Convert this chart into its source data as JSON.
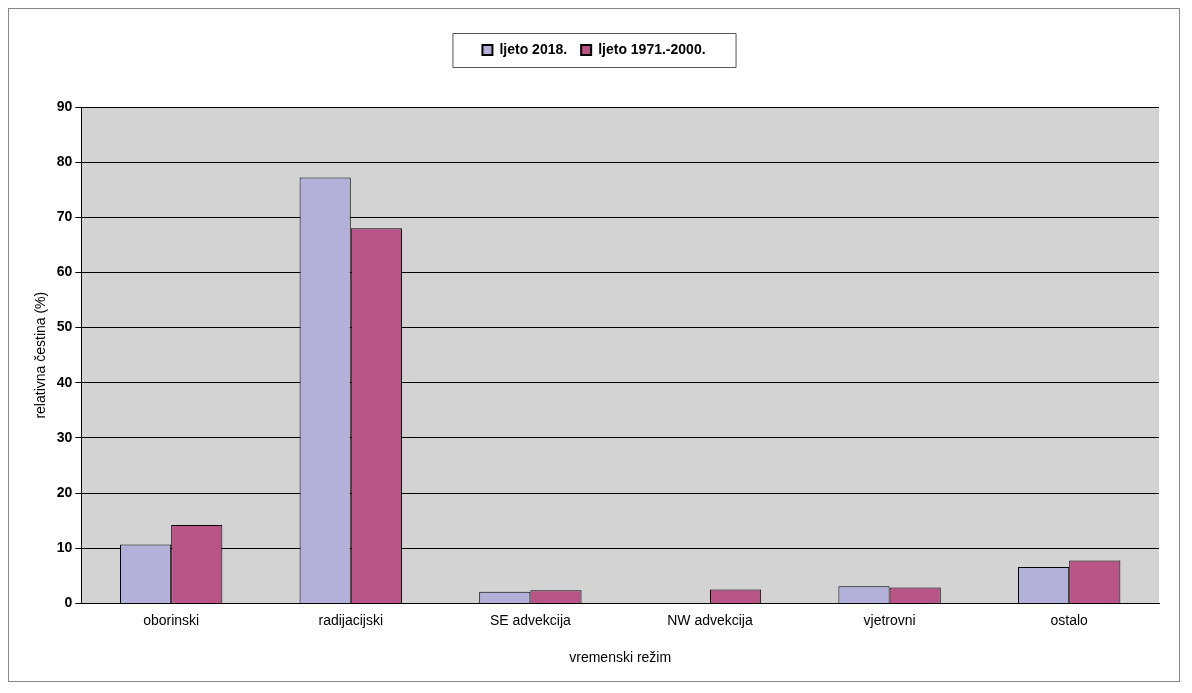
{
  "chart_data": {
    "type": "bar",
    "xlabel": "vremenski režim",
    "ylabel": "relativna čestina (%)",
    "categories": [
      "oborinski",
      "radijacijski",
      "SE advekcija",
      "NW advekcija",
      "vjetrovni",
      "ostalo"
    ],
    "series": [
      {
        "name": "ljeto 2018.",
        "color": "#b3b1d9",
        "values": [
          10.7,
          77.2,
          2.1,
          0,
          3.1,
          6.6
        ]
      },
      {
        "name": "ljeto 1971.-2000.",
        "color": "#b85586",
        "values": [
          14.2,
          68.0,
          2.4,
          2.5,
          2.9,
          7.8
        ]
      }
    ],
    "ylim": [
      0,
      90
    ],
    "yticks": [
      0,
      10,
      20,
      30,
      40,
      50,
      60,
      70,
      80,
      90
    ],
    "grid": "y",
    "legend": "top"
  }
}
